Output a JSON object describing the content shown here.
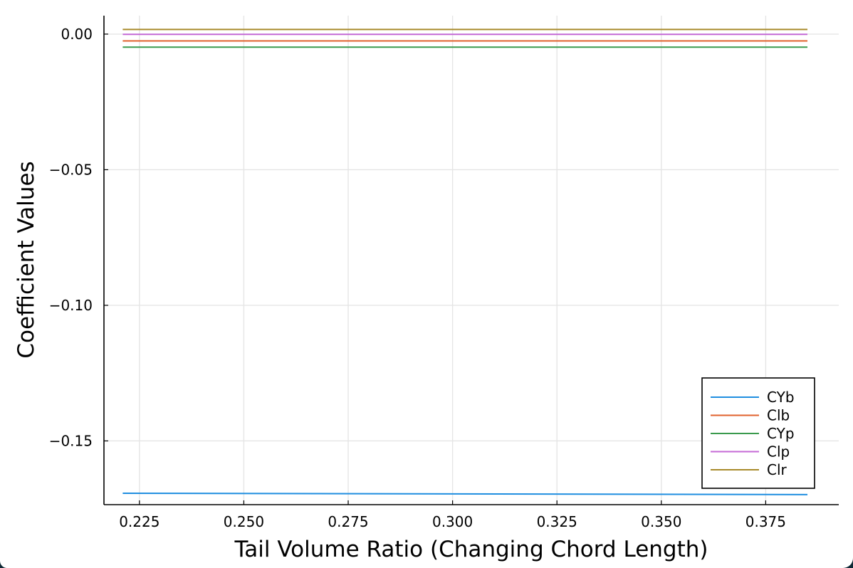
{
  "chart_data": {
    "type": "line",
    "title": "",
    "xlabel": "Tail Volume Ratio (Changing Chord Length)",
    "ylabel": "Coefficient Values",
    "xlim": [
      0.2165,
      0.3925
    ],
    "ylim": [
      -0.1735,
      0.0068
    ],
    "x_ticks": [
      0.225,
      0.25,
      0.275,
      0.3,
      0.325,
      0.35,
      0.375
    ],
    "x_tick_labels": [
      "0.225",
      "0.250",
      "0.275",
      "0.300",
      "0.325",
      "0.350",
      "0.375"
    ],
    "y_ticks": [
      0.0,
      -0.05,
      -0.1,
      -0.15
    ],
    "y_tick_labels": [
      "0.00",
      "−0.05",
      "−0.10",
      "−0.15"
    ],
    "grid": true,
    "legend_position": "bottom-right",
    "series": [
      {
        "name": "CYb",
        "color": "#1f8ee0",
        "x": [
          0.221,
          0.385
        ],
        "y": [
          -0.1693,
          -0.1698
        ]
      },
      {
        "name": "Clb",
        "color": "#e0612c",
        "x": [
          0.221,
          0.385
        ],
        "y": [
          -0.0025,
          -0.0025
        ]
      },
      {
        "name": "CYp",
        "color": "#3a9a4d",
        "x": [
          0.221,
          0.385
        ],
        "y": [
          -0.0048,
          -0.0048
        ]
      },
      {
        "name": "Clp",
        "color": "#c469d6",
        "x": [
          0.221,
          0.385
        ],
        "y": [
          -0.0001,
          -0.0001
        ]
      },
      {
        "name": "Clr",
        "color": "#a88a2a",
        "x": [
          0.221,
          0.385
        ],
        "y": [
          0.0017,
          0.0017
        ]
      }
    ]
  }
}
